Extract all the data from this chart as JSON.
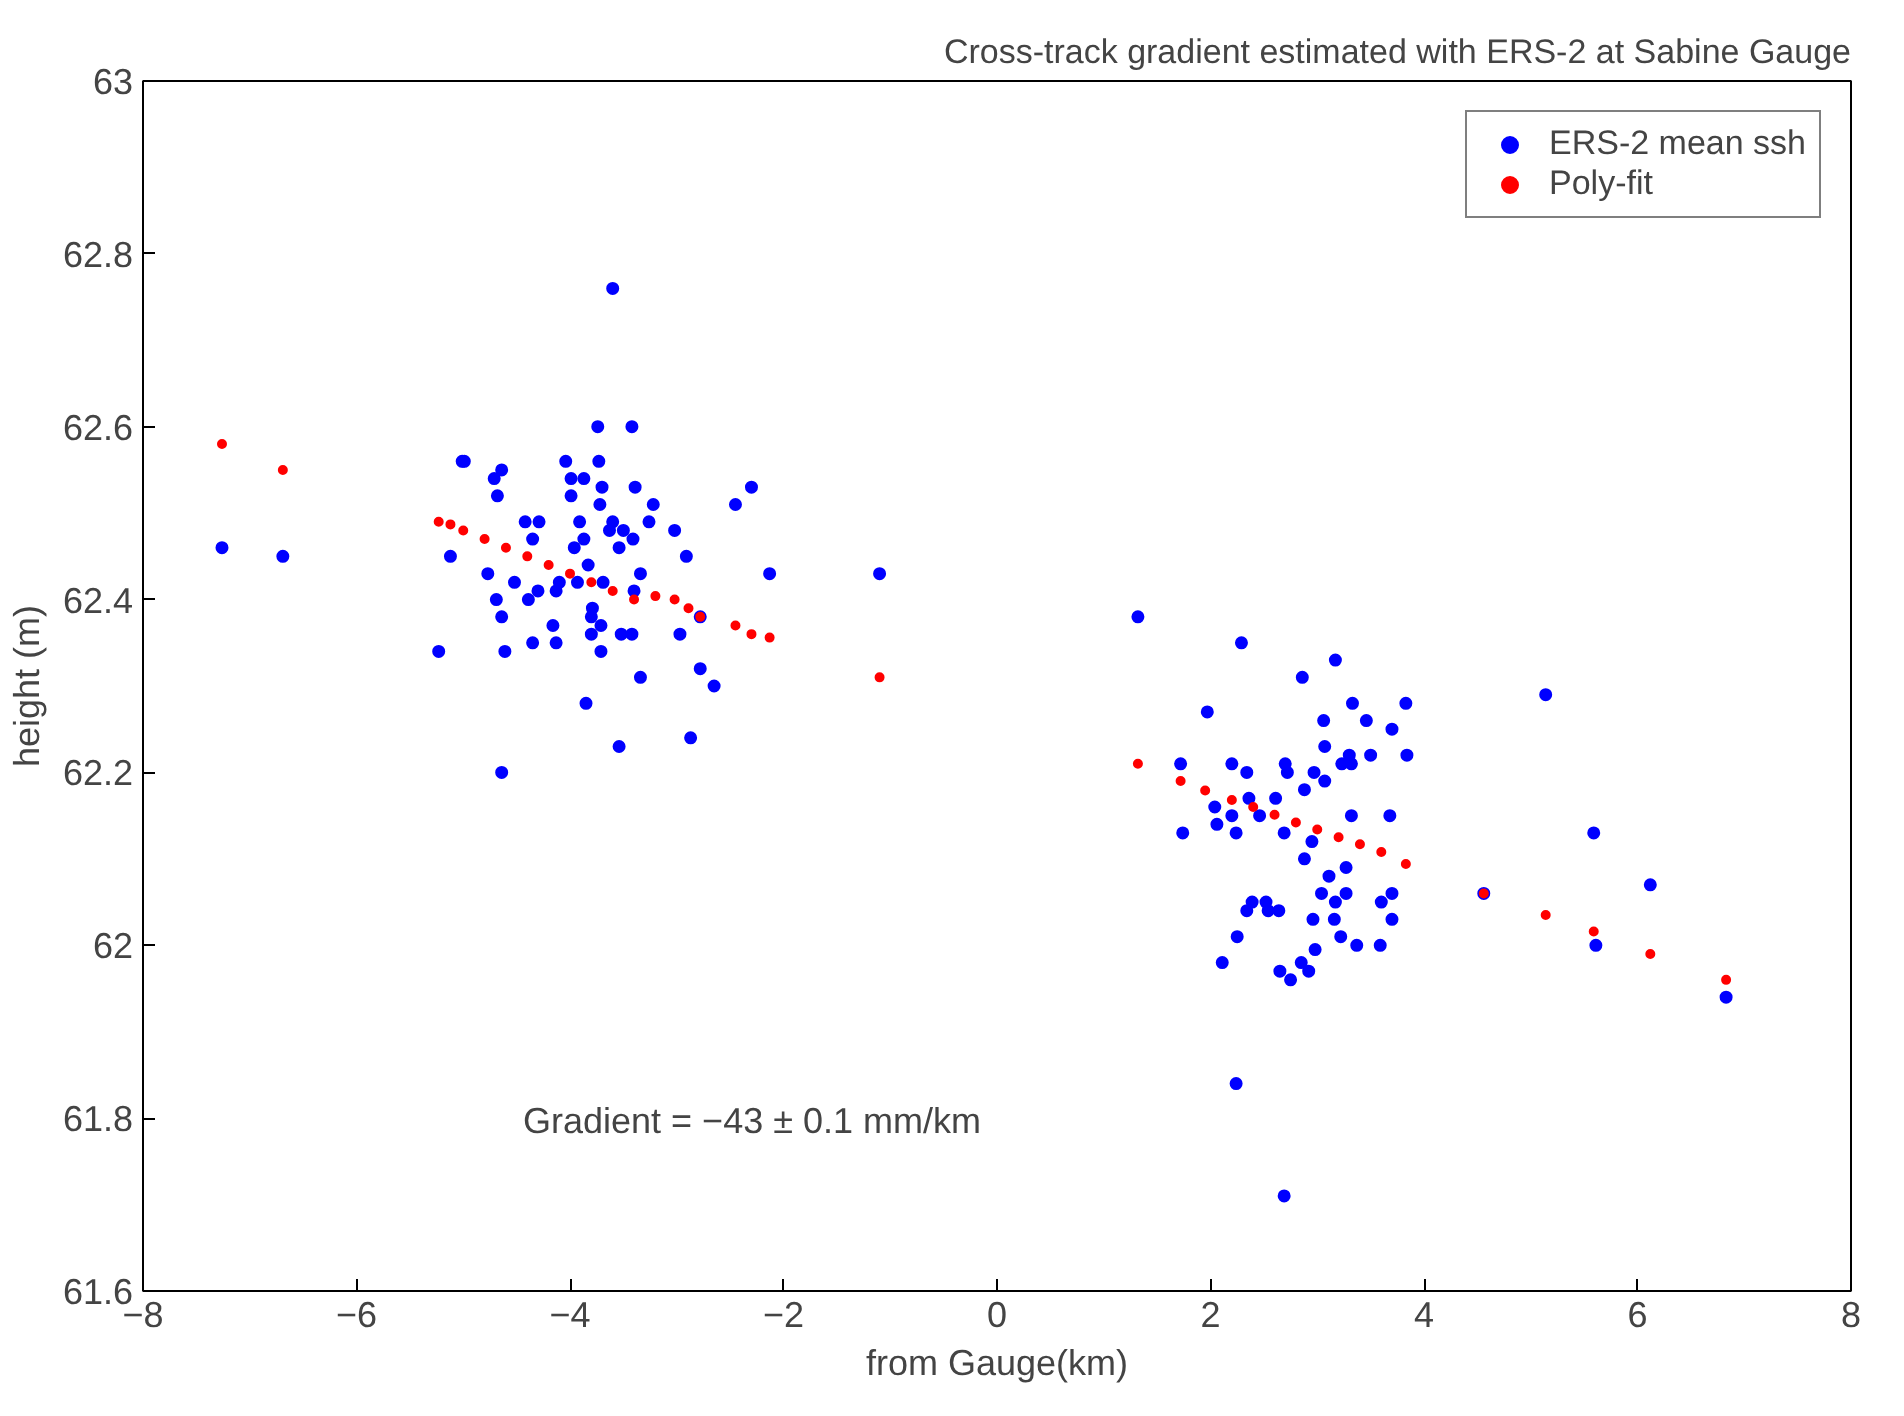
{
  "chart_data": {
    "type": "scatter",
    "title": "Cross-track gradient estimated with ERS-2 at Sabine Gauge",
    "xlabel": "from Gauge(km)",
    "ylabel": "height (m)",
    "xlim": [
      -8,
      8
    ],
    "ylim": [
      61.6,
      63
    ],
    "xticks": [
      -8,
      -6,
      -4,
      -2,
      0,
      2,
      4,
      6,
      8
    ],
    "yticks": [
      61.6,
      61.8,
      62,
      62.2,
      62.4,
      62.6,
      62.8,
      63
    ],
    "grid": false,
    "legend": "top right",
    "marker": "circle",
    "annotations": [
      "Gradient = −43 ± 0.1 mm/km"
    ],
    "series": [
      {
        "name": "ERS-2 mean ssh",
        "color": "#0000ff",
        "x": [
          -7.26,
          -6.69,
          -5.23,
          -5.12,
          -5.01,
          -4.99,
          -4.71,
          -4.68,
          -4.64,
          -4.77,
          -4.69,
          -4.64,
          -4.61,
          -4.64,
          -4.52,
          -4.42,
          -4.39,
          -4.35,
          -4.35,
          -4.3,
          -4.29,
          -4.16,
          -4.13,
          -4.13,
          -4.1,
          -4.04,
          -3.99,
          -3.99,
          -3.96,
          -3.93,
          -3.91,
          -3.87,
          -3.87,
          -3.85,
          -3.83,
          -3.8,
          -3.79,
          -3.8,
          -3.74,
          -3.73,
          -3.72,
          -3.71,
          -3.71,
          -3.7,
          -3.69,
          -3.63,
          -3.6,
          -3.6,
          -3.54,
          -3.54,
          -3.52,
          -3.5,
          -3.42,
          -3.42,
          -3.41,
          -3.4,
          -3.39,
          -3.34,
          -3.34,
          -3.26,
          -3.22,
          -3.02,
          -2.97,
          -2.91,
          -2.87,
          -2.78,
          -2.78,
          -2.65,
          -2.45,
          -2.3,
          -2.13,
          -1.1,
          1.32,
          2.29,
          3.17,
          2.86,
          3.33,
          3.83,
          1.97,
          3.06,
          3.46,
          3.7,
          3.07,
          3.3,
          3.23,
          3.32,
          3.5,
          3.84,
          1.72,
          2.2,
          2.34,
          2.7,
          2.72,
          2.97,
          3.07,
          2.88,
          2.61,
          2.36,
          2.04,
          2.2,
          2.46,
          2.06,
          3.32,
          3.68,
          1.74,
          2.24,
          2.69,
          2.95,
          2.88,
          3.27,
          3.11,
          3.04,
          3.17,
          3.27,
          3.6,
          3.7,
          2.39,
          2.52,
          2.34,
          2.54,
          2.64,
          2.96,
          3.16,
          3.7,
          2.25,
          3.22,
          3.37,
          3.59,
          2.98,
          2.11,
          2.65,
          2.85,
          2.92,
          2.75,
          2.24,
          2.69,
          4.56,
          5.14,
          5.59,
          5.61,
          6.12,
          6.83
        ],
        "values": [
          62.46,
          62.45,
          62.34,
          62.45,
          62.56,
          62.56,
          62.54,
          62.52,
          62.55,
          62.43,
          62.4,
          62.38,
          62.34,
          62.2,
          62.42,
          62.49,
          62.4,
          62.47,
          62.35,
          62.41,
          62.49,
          62.37,
          62.35,
          62.41,
          62.42,
          62.56,
          62.54,
          62.52,
          62.46,
          62.42,
          62.49,
          62.54,
          62.47,
          62.28,
          62.44,
          62.38,
          62.39,
          62.36,
          62.6,
          62.56,
          62.51,
          62.34,
          62.37,
          62.53,
          62.42,
          62.48,
          62.76,
          62.49,
          62.46,
          62.23,
          62.36,
          62.48,
          62.6,
          62.36,
          62.47,
          62.41,
          62.53,
          62.43,
          62.31,
          62.49,
          62.51,
          62.48,
          62.36,
          62.45,
          62.24,
          62.38,
          62.32,
          62.3,
          62.51,
          62.53,
          62.43,
          62.43,
          62.38,
          62.35,
          62.33,
          62.31,
          62.28,
          62.28,
          62.27,
          62.26,
          62.26,
          62.25,
          62.23,
          62.22,
          62.21,
          62.21,
          62.22,
          62.22,
          62.21,
          62.21,
          62.2,
          62.21,
          62.2,
          62.2,
          62.19,
          62.18,
          62.17,
          62.17,
          62.16,
          62.15,
          62.15,
          62.14,
          62.15,
          62.15,
          62.13,
          62.13,
          62.13,
          62.12,
          62.1,
          62.09,
          62.08,
          62.06,
          62.05,
          62.06,
          62.05,
          62.06,
          62.05,
          62.05,
          62.04,
          62.04,
          62.04,
          62.03,
          62.03,
          62.03,
          62.01,
          62.01,
          62,
          62,
          61.995,
          61.98,
          61.97,
          61.98,
          61.97,
          61.96,
          61.84,
          61.71,
          62.06,
          62.29,
          62.13,
          62,
          62.07,
          61.94
        ]
      },
      {
        "name": "Poly-fit",
        "color": "#ff0000",
        "x": [
          -7.26,
          -6.69,
          -5.23,
          -5.12,
          -5.0,
          -4.8,
          -4.6,
          -4.4,
          -4.2,
          -4.0,
          -3.8,
          -3.6,
          -3.4,
          -3.2,
          -3.02,
          -2.89,
          -2.78,
          -2.45,
          -2.3,
          -2.13,
          -1.1,
          1.32,
          1.72,
          1.95,
          2.2,
          2.4,
          2.6,
          2.8,
          3.0,
          3.2,
          3.4,
          3.6,
          3.83,
          4.56,
          5.14,
          5.59,
          6.12,
          6.83
        ],
        "values": [
          62.58,
          62.55,
          62.49,
          62.487,
          62.48,
          62.47,
          62.46,
          62.45,
          62.44,
          62.43,
          62.42,
          62.41,
          62.4,
          62.404,
          62.4,
          62.39,
          62.38,
          62.37,
          62.36,
          62.356,
          62.31,
          62.21,
          62.19,
          62.179,
          62.168,
          62.16,
          62.151,
          62.142,
          62.134,
          62.125,
          62.117,
          62.108,
          62.094,
          62.06,
          62.035,
          62.016,
          61.99,
          61.96
        ]
      }
    ]
  }
}
